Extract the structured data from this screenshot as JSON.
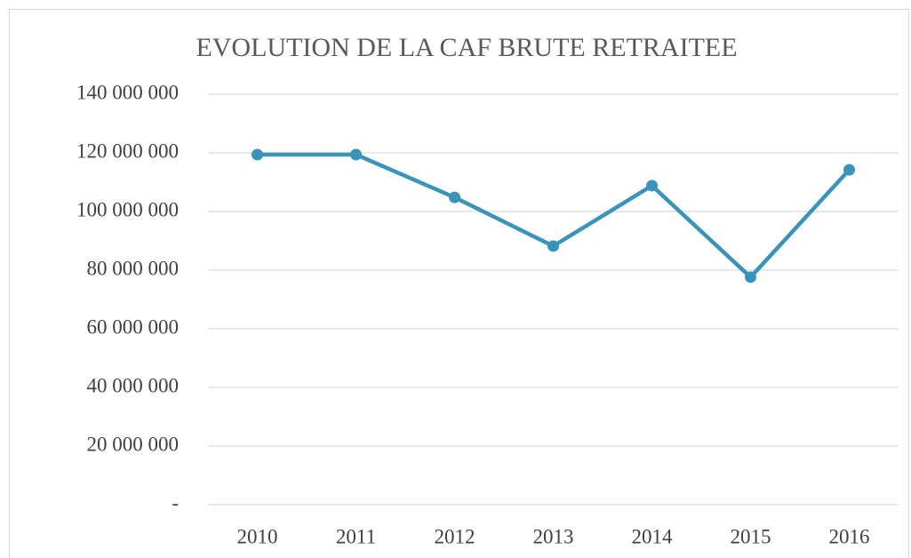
{
  "chart_data": {
    "type": "line",
    "title": "EVOLUTION DE LA CAF BRUTE RETRAITEE",
    "categories": [
      "2010",
      "2011",
      "2012",
      "2013",
      "2014",
      "2015",
      "2016"
    ],
    "series": [
      {
        "name": "CAF brute retraitée",
        "color": "#3a93b8",
        "values": [
          119400000,
          119400000,
          104800000,
          88200000,
          108800000,
          77600000,
          114200000
        ]
      }
    ],
    "ylim": [
      0,
      140000000
    ],
    "yticks": [
      {
        "value": 0,
        "label": "-"
      },
      {
        "value": 20000000,
        "label": "20 000 000"
      },
      {
        "value": 40000000,
        "label": "40 000 000"
      },
      {
        "value": 60000000,
        "label": "60 000 000"
      },
      {
        "value": 80000000,
        "label": "80 000 000"
      },
      {
        "value": 100000000,
        "label": "100 000 000"
      },
      {
        "value": 120000000,
        "label": "120 000 000"
      },
      {
        "value": 140000000,
        "label": "140 000 000"
      }
    ],
    "grid": true
  }
}
